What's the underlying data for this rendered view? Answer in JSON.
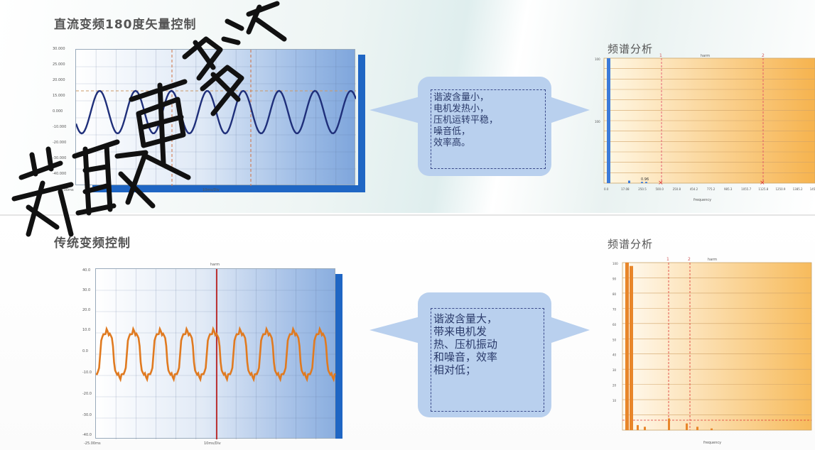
{
  "top": {
    "title": "直流变频180度矢量控制",
    "spectrum_title": "频谱分析",
    "callout": "谐波含量小，\n电机发热小，\n压机运转平稳，\n噪音低，\n效率高。",
    "scope": {
      "y_ticks": [
        "30.000",
        "25.000",
        "20.000",
        "15.000",
        "0.000",
        "-10.000",
        "-20.000",
        "-30.000",
        "-40.000"
      ],
      "x_left": "-20.00ms",
      "x_mid": "10ms/Div"
    },
    "spectrum": {
      "header": "harm",
      "markers": [
        "1",
        "2"
      ],
      "y_ticks": [
        "100",
        "",
        "",
        "",
        "",
        "",
        "100",
        "",
        "",
        "",
        "",
        "",
        ""
      ],
      "x_ticks": [
        "0.0",
        "17.08",
        "250.5",
        "500.0",
        "250.8",
        "454.2",
        "775.2",
        "985.3",
        "1055.7",
        "1125.8",
        "1250.9",
        "1385.2",
        "145"
      ],
      "xlabel": "frequency",
      "small_label": "0.96",
      "bars": [
        100,
        2,
        1,
        1
      ]
    }
  },
  "bottom": {
    "title": "传统变频控制",
    "spectrum_title": "频谱分析",
    "callout": "谐波含量大，\n带来电机发\n热、压机振动\n和噪音，效率\n相对低；",
    "scope": {
      "y_ticks": [
        "40.0",
        "30.0",
        "20.0",
        "10.0",
        "0.0",
        "-10.0",
        "-20.0",
        "-30.0",
        "-40.0"
      ],
      "x_left": "-25.00ms",
      "x_mid": "10ms/Div",
      "top_label": "harm"
    },
    "spectrum": {
      "header": "harm",
      "markers": [
        "1",
        "2"
      ],
      "y_ticks": [
        "100",
        "90",
        "80",
        "70",
        "60",
        "50",
        "40",
        "30",
        "20",
        "10",
        ""
      ],
      "xlabel": "frequency",
      "bars": [
        100,
        98,
        3,
        2,
        7,
        4,
        2,
        1
      ]
    }
  },
  "watermark": "获取更多资",
  "colors": {
    "wave_top": "#1f2f7a",
    "wave_bottom": "#e07a20",
    "scope_dark": "#2f6fc4",
    "spec_orange": "#f4b54a",
    "bubble": "#b9d0ee"
  }
}
